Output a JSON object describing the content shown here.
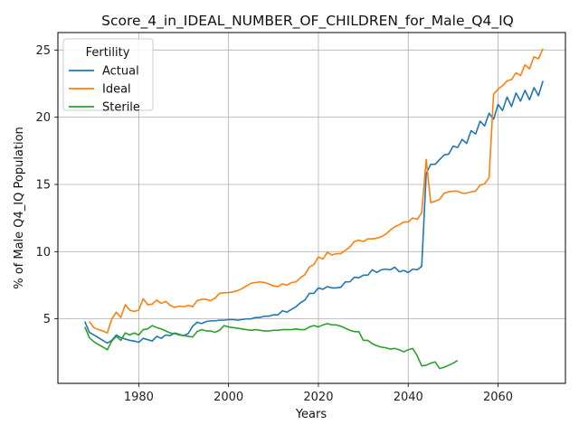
{
  "chart_data": {
    "type": "line",
    "title": "Score_4_in_IDEAL_NUMBER_OF_CHILDREN_for_Male_Q4_IQ",
    "xlabel": "Years",
    "ylabel": "% of Male Q4_IQ Population",
    "xlim": [
      1962,
      2075
    ],
    "ylim": [
      0.2,
      26.3
    ],
    "xticks": [
      1980,
      2000,
      2020,
      2040,
      2060
    ],
    "yticks": [
      5,
      10,
      15,
      20,
      25
    ],
    "grid": true,
    "legend": {
      "title": "Fertility",
      "position": "top-left"
    },
    "series": [
      {
        "name": "Actual",
        "color": "#1f77b4",
        "x": [
          1968,
          1969,
          1970,
          1971,
          1972,
          1973,
          1974,
          1975,
          1976,
          1977,
          1978,
          1979,
          1980,
          1981,
          1982,
          1983,
          1984,
          1985,
          1986,
          1987,
          1988,
          1989,
          1990,
          1991,
          1992,
          1993,
          1994,
          1995,
          1996,
          1997,
          1998,
          1999,
          2000,
          2001,
          2002,
          2003,
          2004,
          2005,
          2006,
          2007,
          2008,
          2009,
          2010,
          2011,
          2012,
          2013,
          2014,
          2015,
          2016,
          2017,
          2018,
          2019,
          2020,
          2021,
          2022,
          2023,
          2024,
          2025,
          2026,
          2027,
          2028,
          2029,
          2030,
          2031,
          2032,
          2033,
          2034,
          2035,
          2036,
          2037,
          2038,
          2039,
          2040,
          2041,
          2042,
          2043,
          2044,
          2045,
          2046,
          2047,
          2048,
          2049,
          2050,
          2051,
          2052,
          2053,
          2054,
          2055,
          2056,
          2057,
          2058,
          2059,
          2060,
          2061,
          2062,
          2063,
          2064,
          2065,
          2066,
          2067,
          2068,
          2069,
          2070
        ],
        "values": [
          4.8,
          4.0,
          3.8,
          3.6,
          3.4,
          3.2,
          3.4,
          3.8,
          3.6,
          3.5,
          3.4,
          3.35,
          3.25,
          3.55,
          3.45,
          3.35,
          3.7,
          3.55,
          3.8,
          3.75,
          3.95,
          3.85,
          3.75,
          3.9,
          4.45,
          4.75,
          4.65,
          4.8,
          4.85,
          4.85,
          4.9,
          4.9,
          4.95,
          4.95,
          4.9,
          4.95,
          5.0,
          5.0,
          5.1,
          5.1,
          5.2,
          5.2,
          5.3,
          5.3,
          5.6,
          5.5,
          5.7,
          5.9,
          6.2,
          6.4,
          6.9,
          6.9,
          7.3,
          7.2,
          7.4,
          7.3,
          7.3,
          7.35,
          7.75,
          7.75,
          8.1,
          8.05,
          8.25,
          8.25,
          8.65,
          8.45,
          8.65,
          8.7,
          8.65,
          8.85,
          8.5,
          8.6,
          8.45,
          8.7,
          8.65,
          8.9,
          15.8,
          16.5,
          16.5,
          16.85,
          17.2,
          17.25,
          17.85,
          17.75,
          18.35,
          18.05,
          19.0,
          18.75,
          19.7,
          19.35,
          20.3,
          19.85,
          20.95,
          20.5,
          21.5,
          20.8,
          21.8,
          21.2,
          22.0,
          21.3,
          22.2,
          21.6,
          22.7
        ]
      },
      {
        "name": "Ideal",
        "color": "#ff7f0e",
        "x": [
          1969,
          1970,
          1971,
          1972,
          1973,
          1974,
          1975,
          1976,
          1977,
          1978,
          1979,
          1980,
          1981,
          1982,
          1983,
          1984,
          1985,
          1986,
          1987,
          1988,
          1989,
          1990,
          1991,
          1992,
          1993,
          1994,
          1995,
          1996,
          1997,
          1998,
          1999,
          2000,
          2001,
          2002,
          2003,
          2004,
          2005,
          2006,
          2007,
          2008,
          2009,
          2010,
          2011,
          2012,
          2013,
          2014,
          2015,
          2016,
          2017,
          2018,
          2019,
          2020,
          2021,
          2022,
          2023,
          2024,
          2025,
          2026,
          2027,
          2028,
          2029,
          2030,
          2031,
          2032,
          2033,
          2034,
          2035,
          2036,
          2037,
          2038,
          2039,
          2040,
          2041,
          2042,
          2043,
          2044,
          2045,
          2046,
          2047,
          2048,
          2049,
          2050,
          2051,
          2052,
          2053,
          2054,
          2055,
          2056,
          2057,
          2058,
          2059,
          2060,
          2061,
          2062,
          2063,
          2064,
          2065,
          2066,
          2067,
          2068,
          2069,
          2070
        ],
        "values": [
          4.8,
          4.35,
          4.2,
          4.1,
          3.95,
          5.0,
          5.5,
          5.1,
          6.05,
          5.65,
          5.55,
          5.65,
          6.5,
          6.05,
          6.1,
          6.4,
          6.15,
          6.3,
          6.0,
          5.85,
          5.95,
          5.9,
          6.0,
          5.9,
          6.35,
          6.45,
          6.45,
          6.35,
          6.55,
          6.9,
          6.95,
          6.95,
          7.0,
          7.1,
          7.25,
          7.45,
          7.65,
          7.7,
          7.75,
          7.7,
          7.6,
          7.45,
          7.4,
          7.6,
          7.5,
          7.7,
          7.75,
          8.05,
          8.3,
          8.85,
          9.05,
          9.6,
          9.45,
          9.95,
          9.75,
          9.85,
          9.85,
          10.1,
          10.35,
          10.75,
          10.85,
          10.75,
          10.95,
          10.95,
          11.0,
          11.1,
          11.3,
          11.6,
          11.85,
          12.0,
          12.2,
          12.2,
          12.5,
          12.4,
          12.9,
          16.85,
          13.65,
          13.75,
          13.9,
          14.35,
          14.45,
          14.5,
          14.5,
          14.35,
          14.35,
          14.45,
          14.5,
          14.95,
          15.05,
          15.5,
          21.7,
          22.1,
          22.35,
          22.7,
          22.8,
          23.3,
          23.1,
          23.9,
          23.6,
          24.5,
          24.35,
          25.1
        ]
      },
      {
        "name": "Sterile",
        "color": "#2ca02c",
        "x": [
          1968,
          1969,
          1970,
          1971,
          1972,
          1973,
          1974,
          1975,
          1976,
          1977,
          1978,
          1979,
          1980,
          1981,
          1982,
          1983,
          1984,
          1985,
          1986,
          1987,
          1988,
          1989,
          1990,
          1991,
          1992,
          1993,
          1994,
          1995,
          1996,
          1997,
          1998,
          1999,
          2000,
          2001,
          2002,
          2003,
          2004,
          2005,
          2006,
          2007,
          2008,
          2009,
          2010,
          2011,
          2012,
          2013,
          2014,
          2015,
          2016,
          2017,
          2018,
          2019,
          2020,
          2021,
          2022,
          2023,
          2024,
          2025,
          2026,
          2027,
          2028,
          2029,
          2030,
          2031,
          2032,
          2033,
          2034,
          2035,
          2036,
          2037,
          2038,
          2039,
          2040,
          2041,
          2042,
          2043,
          2044,
          2045,
          2046,
          2047,
          2048,
          2049,
          2050,
          2051
        ],
        "values": [
          4.4,
          3.6,
          3.3,
          3.1,
          2.9,
          2.7,
          3.35,
          3.7,
          3.4,
          3.95,
          3.8,
          3.95,
          3.8,
          4.2,
          4.25,
          4.5,
          4.35,
          4.25,
          4.1,
          3.95,
          3.9,
          3.8,
          3.75,
          3.7,
          3.65,
          4.05,
          4.2,
          4.1,
          4.1,
          4.0,
          4.15,
          4.5,
          4.4,
          4.35,
          4.3,
          4.25,
          4.2,
          4.15,
          4.2,
          4.15,
          4.1,
          4.1,
          4.15,
          4.15,
          4.2,
          4.2,
          4.2,
          4.25,
          4.2,
          4.2,
          4.4,
          4.5,
          4.4,
          4.55,
          4.65,
          4.55,
          4.55,
          4.45,
          4.3,
          4.15,
          4.05,
          4.05,
          3.4,
          3.4,
          3.15,
          3.0,
          2.9,
          2.85,
          2.75,
          2.8,
          2.7,
          2.55,
          2.7,
          2.8,
          2.25,
          1.5,
          1.55,
          1.7,
          1.8,
          1.3,
          1.4,
          1.55,
          1.7,
          1.9
        ]
      }
    ]
  }
}
